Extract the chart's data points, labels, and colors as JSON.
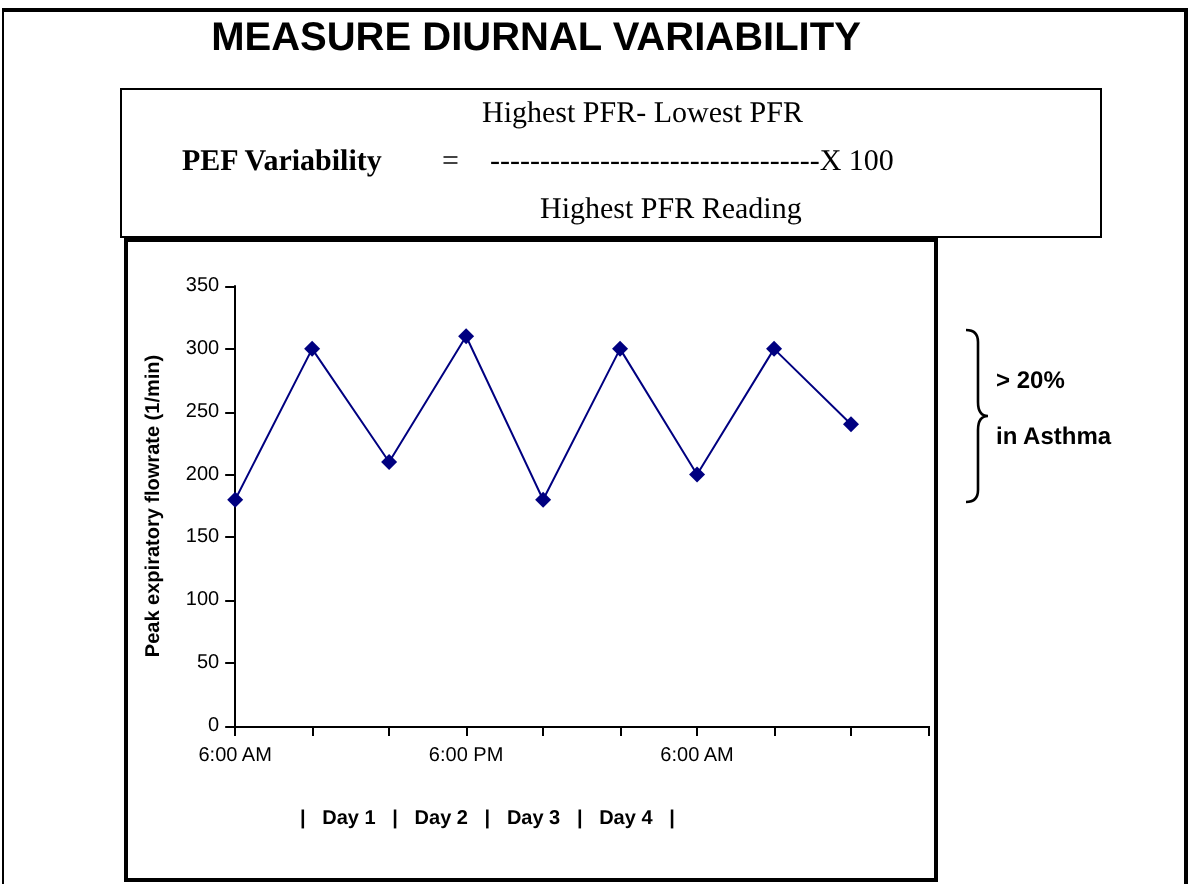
{
  "chart_data": {
    "type": "line",
    "title": "MEASURE DIURNAL VARIABILITY",
    "ylabel": "Peak expiratory flowrate (1/min)",
    "annotations": [
      "PEF Variability",
      "=",
      "Highest PFR- Lowest PFR",
      "---------------------------------X 100",
      "Highest PFR Reading",
      "|   Day 1   |   Day 2   |   Day 3   |   Day 4   |",
      "> 20%",
      "in Asthma"
    ],
    "categories": [
      "6:00 AM",
      null,
      null,
      "6:00 PM",
      null,
      null,
      "6:00 AM",
      null,
      null,
      null
    ],
    "series": [
      {
        "color": "#000080",
        "values": [
          180,
          300,
          210,
          310,
          180,
          300,
          200,
          300,
          240,
          null
        ]
      }
    ],
    "ylim": [
      0,
      350
    ],
    "yticks": [
      0,
      50,
      100,
      150,
      200,
      250,
      300,
      350
    ],
    "grid": false,
    "marker": "diamond",
    "line_style": "solid"
  }
}
